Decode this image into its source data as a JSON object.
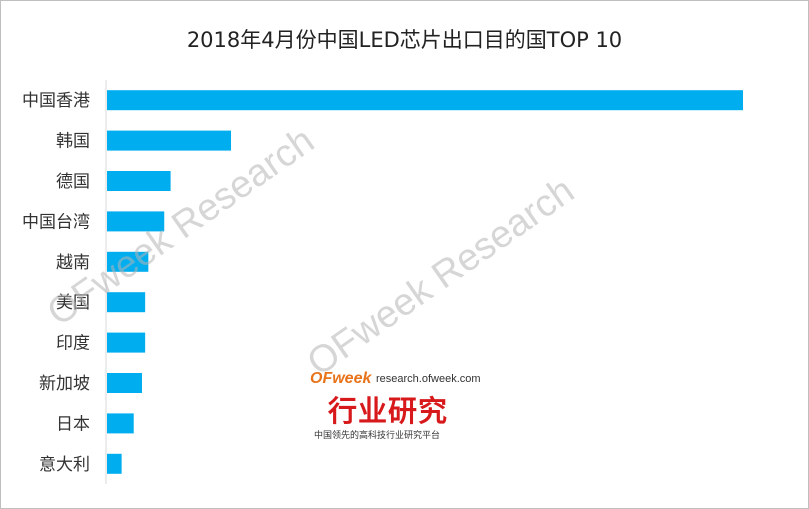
{
  "chart_data": {
    "type": "bar",
    "orientation": "horizontal",
    "title": "2018年4月份中国LED芯片出口目的国TOP 10",
    "categories": [
      "中国香港",
      "韩国",
      "德国",
      "中国台湾",
      "越南",
      "美国",
      "印度",
      "新加坡",
      "日本",
      "意大利"
    ],
    "values": [
      100,
      19.5,
      10,
      9,
      6.5,
      6,
      6,
      5.5,
      4.2,
      2.3
    ],
    "xlim": [
      0,
      100
    ],
    "bar_color": "#00aeef",
    "grid": false,
    "legend": "none"
  },
  "watermark": {
    "text": "OFweek Research"
  },
  "logo": {
    "brand": "OFweek",
    "url": "research.ofweek.com",
    "name": "行业研究",
    "tagline": "中国领先的高科技行业研究平台"
  }
}
